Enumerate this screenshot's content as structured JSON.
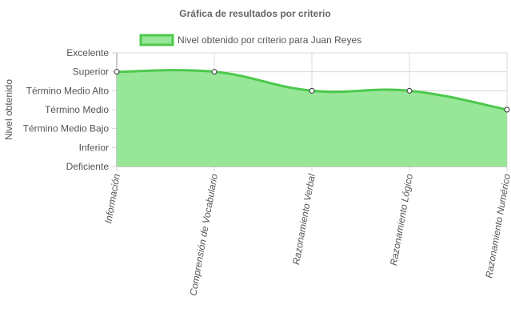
{
  "chart_data": {
    "type": "area",
    "title": "Gráfica de resultados por criterio",
    "ylabel": "Nivel obtenido",
    "xlabel": "",
    "categories": [
      "Información",
      "Comprensión de Vocabulario",
      "Razonamiento Verbal",
      "Razonamiento Lógico",
      "Razonamiento Numérico"
    ],
    "y_levels": [
      "Deficiente",
      "Inferior",
      "Término Medio Bajo",
      "Término Medio",
      "Término Medio Alto",
      "Superior",
      "Excelente"
    ],
    "series": [
      {
        "name": "Nivel obtenido por criterio para Juan Reyes",
        "values": [
          5,
          5,
          4,
          4,
          3
        ]
      }
    ],
    "ylim": [
      0,
      6
    ],
    "grid": true,
    "legend_position": "top",
    "colors": {
      "line": "#4cc94c",
      "fill": "#98e698",
      "point_fill": "#ffffff",
      "point_stroke": "#333333",
      "grid": "#d9d9d9",
      "axis": "#999999"
    }
  }
}
